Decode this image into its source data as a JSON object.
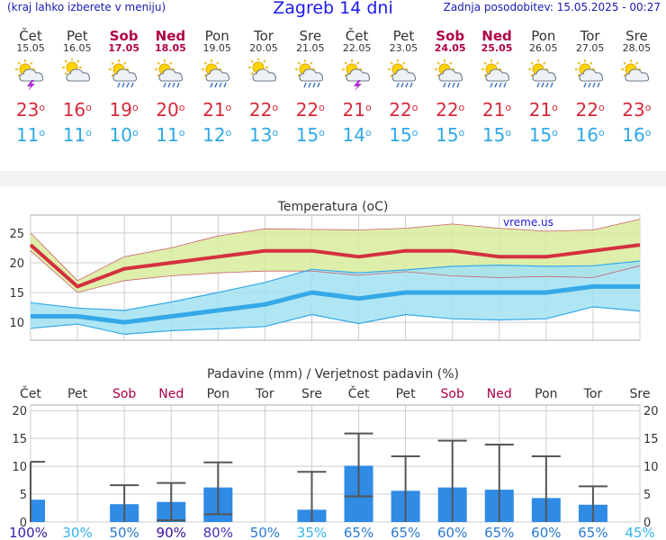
{
  "header": {
    "left_note": "(kraj lahko izberete v meniju)",
    "title": "Zagreb 14 dni",
    "updated": "Zadnja posodobitev: 15.05.2025 - 00:27"
  },
  "days": [
    {
      "name": "Čet",
      "date": "15.05",
      "weekend": false,
      "icon": "sun-cloud-storm-icon",
      "tmax": "23",
      "tmin": "11"
    },
    {
      "name": "Pet",
      "date": "16.05",
      "weekend": false,
      "icon": "cloudy-icon",
      "tmax": "16",
      "tmin": "11"
    },
    {
      "name": "Sob",
      "date": "17.05",
      "weekend": true,
      "icon": "sun-cloud-rain-icon",
      "tmax": "19",
      "tmin": "10"
    },
    {
      "name": "Ned",
      "date": "18.05",
      "weekend": true,
      "icon": "sun-cloud-rain-icon",
      "tmax": "20",
      "tmin": "11"
    },
    {
      "name": "Pon",
      "date": "19.05",
      "weekend": false,
      "icon": "sun-cloud-rain-icon",
      "tmax": "21",
      "tmin": "12"
    },
    {
      "name": "Tor",
      "date": "20.05",
      "weekend": false,
      "icon": "cloudy-icon",
      "tmax": "22",
      "tmin": "13"
    },
    {
      "name": "Sre",
      "date": "21.05",
      "weekend": false,
      "icon": "sun-cloud-rain-icon",
      "tmax": "22",
      "tmin": "15"
    },
    {
      "name": "Čet",
      "date": "22.05",
      "weekend": false,
      "icon": "sun-cloud-storm-icon",
      "tmax": "21",
      "tmin": "14"
    },
    {
      "name": "Pet",
      "date": "23.05",
      "weekend": false,
      "icon": "sun-cloud-rain-icon",
      "tmax": "22",
      "tmin": "15"
    },
    {
      "name": "Sob",
      "date": "24.05",
      "weekend": true,
      "icon": "sun-cloud-rain-icon",
      "tmax": "22",
      "tmin": "15"
    },
    {
      "name": "Ned",
      "date": "25.05",
      "weekend": true,
      "icon": "sun-cloud-rain-icon",
      "tmax": "21",
      "tmin": "15"
    },
    {
      "name": "Pon",
      "date": "26.05",
      "weekend": false,
      "icon": "sun-cloud-rain-icon",
      "tmax": "21",
      "tmin": "15"
    },
    {
      "name": "Tor",
      "date": "27.05",
      "weekend": false,
      "icon": "sun-cloud-rain-icon",
      "tmax": "22",
      "tmin": "16"
    },
    {
      "name": "Sre",
      "date": "28.05",
      "weekend": false,
      "icon": "sun-cloud-icon",
      "tmax": "23",
      "tmin": "16"
    }
  ],
  "degree_symbol": "o",
  "chart_data": [
    {
      "type": "area",
      "title": "Temperatura (oC)",
      "watermark": "vreme.us",
      "categories": [
        "15.05",
        "16.05",
        "17.05",
        "18.05",
        "19.05",
        "20.05",
        "21.05",
        "22.05",
        "23.05",
        "24.05",
        "25.05",
        "26.05",
        "27.05",
        "28.05"
      ],
      "ylim": [
        7,
        28
      ],
      "yticks": [
        10,
        15,
        20,
        25
      ],
      "grid": true,
      "series": [
        {
          "role": "max",
          "values": [
            23,
            16,
            19,
            20,
            21,
            22,
            22,
            21,
            22,
            22,
            21,
            21,
            22,
            23
          ],
          "color": "#d4303f"
        },
        {
          "role": "max-range-high",
          "values": [
            25,
            17,
            21,
            22.5,
            24.5,
            25.7,
            25.6,
            25.5,
            25.8,
            26.5,
            25.8,
            25.3,
            25.5,
            27.3
          ],
          "color": "#d8ec9c"
        },
        {
          "role": "max-range-low",
          "values": [
            22,
            15,
            17,
            17.8,
            18.3,
            18.6,
            18.6,
            17.9,
            18.5,
            17.8,
            17.5,
            17.7,
            17.5,
            19.5
          ],
          "color": "#d8ec9c"
        },
        {
          "role": "min",
          "values": [
            11,
            11,
            10,
            11,
            12,
            13,
            15,
            14,
            15,
            15,
            15,
            15,
            16,
            16
          ],
          "color": "#35a9e8"
        },
        {
          "role": "min-range-high",
          "values": [
            13.3,
            12.4,
            12,
            13.4,
            15,
            16.7,
            18.9,
            18.3,
            18.8,
            19.4,
            19.6,
            19.4,
            19.5,
            20.3
          ],
          "color": "#a2e2f2"
        },
        {
          "role": "min-range-low",
          "values": [
            9,
            9.7,
            8,
            8.6,
            8.9,
            9.3,
            11.3,
            9.8,
            11.3,
            10.6,
            10.4,
            10.6,
            12.6,
            11.9
          ],
          "color": "#a2e2f2"
        }
      ]
    },
    {
      "type": "bar",
      "title": "Padavine (mm) / Verjetnost padavin (%)",
      "categories": [
        "Čet",
        "Pet",
        "Sob",
        "Ned",
        "Pon",
        "Tor",
        "Sre",
        "Čet",
        "Pet",
        "Sob",
        "Ned",
        "Pon",
        "Tor",
        "Sre"
      ],
      "weekend": [
        false,
        false,
        true,
        true,
        false,
        false,
        false,
        false,
        false,
        true,
        true,
        false,
        false,
        false
      ],
      "ylim": [
        0,
        21
      ],
      "yticks": [
        0,
        5,
        10,
        15,
        20
      ],
      "values": [
        4,
        0,
        3.2,
        3.6,
        6.2,
        0,
        2.2,
        10.1,
        5.6,
        6.2,
        5.8,
        4.3,
        3.1,
        0
      ],
      "error_high": [
        10.8,
        0,
        6.6,
        7.0,
        10.7,
        0,
        9.0,
        15.9,
        11.8,
        14.6,
        13.9,
        11.8,
        6.4,
        0
      ],
      "error_low": [
        0,
        0,
        0,
        0.3,
        1.4,
        0,
        0,
        4.6,
        0,
        0,
        0,
        0,
        0,
        0
      ],
      "probability": [
        "100%",
        "30%",
        "50%",
        "90%",
        "80%",
        "50%",
        "35%",
        "65%",
        "65%",
        "60%",
        "65%",
        "60%",
        "65%",
        "45%"
      ],
      "probability_colors": [
        "#3322aa",
        "#35b4ee",
        "#2a7ad6",
        "#3a0f9a",
        "#4433bb",
        "#2a7ad6",
        "#35b4ee",
        "#2a7ad6",
        "#2a7ad6",
        "#2a7ad6",
        "#2a7ad6",
        "#2a7ad6",
        "#2a7ad6",
        "#35b4ee"
      ],
      "bar_color": "#2f8be4",
      "grid": true
    }
  ]
}
